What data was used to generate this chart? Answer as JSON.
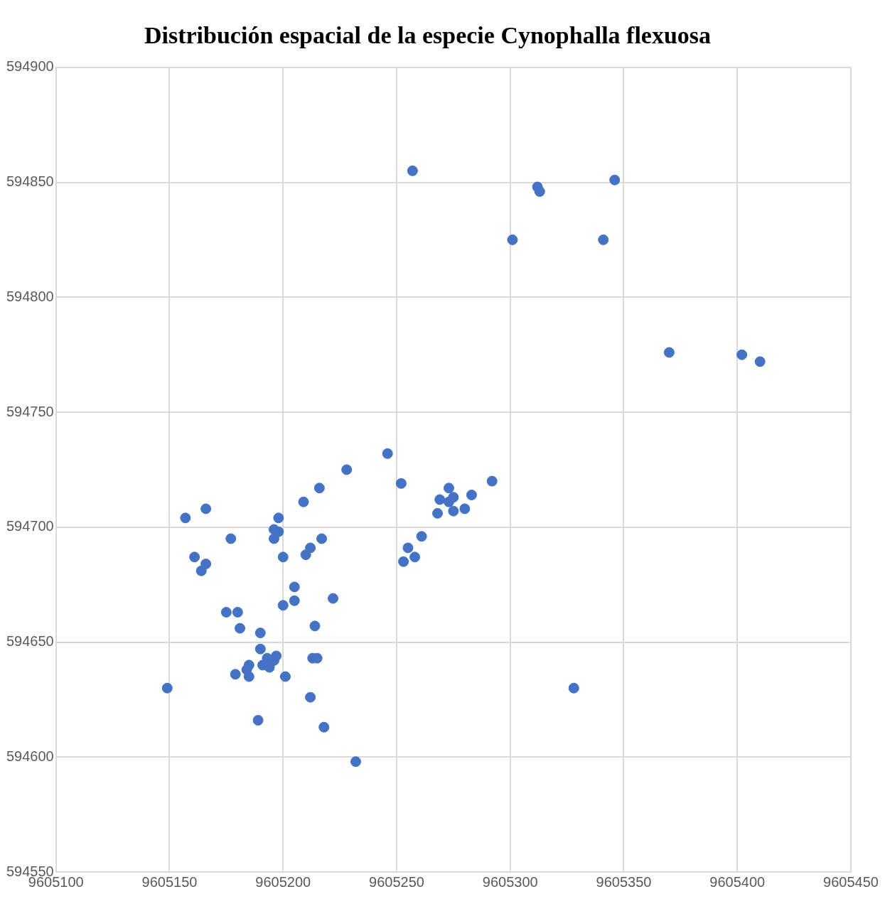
{
  "chart_data": {
    "type": "scatter",
    "title": "Distribución espacial de la especie Cynophalla flexuosa",
    "x": [
      9605257,
      9605312,
      9605313,
      9605346,
      9605301,
      9605341,
      9605370,
      9605402,
      9605410,
      9605246,
      9605228,
      9605252,
      9605292,
      9605216,
      9605273,
      9605269,
      9605275,
      9605283,
      9605273,
      9605268,
      9605275,
      9605280,
      9605209,
      9605157,
      9605166,
      9605198,
      9605196,
      9605198,
      9605196,
      9605177,
      9605217,
      9605261,
      9605212,
      9605210,
      9605200,
      9605255,
      9605258,
      9605253,
      9605161,
      9605166,
      9605164,
      9605205,
      9605205,
      9605222,
      9605200,
      9605175,
      9605180,
      9605181,
      9605214,
      9605190,
      9605190,
      9605197,
      9605193,
      9605196,
      9605191,
      9605194,
      9605185,
      9605184,
      9605179,
      9605185,
      9605201,
      9605213,
      9605215,
      9605149,
      9605328,
      9605212,
      9605189,
      9605218,
      9605232
    ],
    "values": [
      594855,
      594848,
      594846,
      594851,
      594825,
      594825,
      594776,
      594775,
      594772,
      594732,
      594725,
      594719,
      594720,
      594717,
      594717,
      594712,
      594713,
      594714,
      594711,
      594706,
      594707,
      594708,
      594711,
      594704,
      594708,
      594704,
      594699,
      594698,
      594695,
      594695,
      594695,
      594696,
      594691,
      594688,
      594687,
      594691,
      594687,
      594685,
      594687,
      594684,
      594681,
      594674,
      594668,
      594669,
      594666,
      594663,
      594663,
      594656,
      594657,
      594654,
      594647,
      594644,
      594643,
      594642,
      594640,
      594639,
      594640,
      594638,
      594636,
      594635,
      594635,
      594643,
      594643,
      594630,
      594630,
      594626,
      594616,
      594613,
      594598
    ],
    "color": "#4472c4",
    "marker": "circle",
    "xlim": [
      9605100,
      9605450
    ],
    "xticks": [
      9605100,
      9605150,
      9605200,
      9605250,
      9605300,
      9605350,
      9605400,
      9605450
    ],
    "ylim": [
      594550,
      594900
    ],
    "yticks": [
      594550,
      594600,
      594650,
      594700,
      594750,
      594800,
      594850,
      594900
    ],
    "grid": true
  }
}
